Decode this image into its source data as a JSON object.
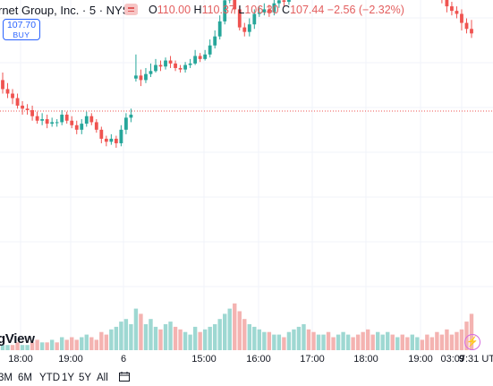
{
  "header": {
    "symbol": "rnet Group, Inc. · 5 · NYSE",
    "o_label": "O",
    "o": "110.00",
    "h_label": "H",
    "h": "110.37",
    "l_label": "L",
    "l": "106.30",
    "c_label": "C",
    "c": "107.44",
    "change": "−2.56 (−2.32%)"
  },
  "trade": {
    "price": "107.70",
    "action": "BUY"
  },
  "logo": {
    "text": "gView"
  },
  "time_axis": {
    "labels": [
      "18:00",
      "19:00",
      "6",
      "15:00",
      "16:00",
      "17:00",
      "18:00",
      "19:00",
      "9"
    ],
    "clock": "03:07:31 UT"
  },
  "ranges": [
    "3M",
    "6M",
    "YTD",
    "1Y",
    "5Y",
    "All"
  ],
  "colors": {
    "up": "#26a69a",
    "down": "#ef5350",
    "vol_up": "#9ed8d2",
    "vol_down": "#f4b3b1",
    "price_line": "#ef5350",
    "accent": "#2962ff"
  },
  "chart_data": {
    "type": "candlestick",
    "current_price": 107.44,
    "candles": [
      [
        109.5,
        108.9,
        110.0,
        108.6
      ],
      [
        108.9,
        108.6,
        109.3,
        108.3
      ],
      [
        108.6,
        108.3,
        108.9,
        107.9
      ],
      [
        108.3,
        107.8,
        108.6,
        107.6
      ],
      [
        107.8,
        107.6,
        108.1,
        107.2
      ],
      [
        107.6,
        107.5,
        107.9,
        107.2
      ],
      [
        107.5,
        107.1,
        107.8,
        106.8
      ],
      [
        107.1,
        106.8,
        107.4,
        106.6
      ],
      [
        106.8,
        106.9,
        107.3,
        106.5
      ],
      [
        106.9,
        106.6,
        107.2,
        106.3
      ],
      [
        106.6,
        106.7,
        107.0,
        106.4
      ],
      [
        106.7,
        106.7,
        106.9,
        106.4
      ],
      [
        106.7,
        107.2,
        107.5,
        106.5
      ],
      [
        107.2,
        106.8,
        107.4,
        106.6
      ],
      [
        106.8,
        106.5,
        107.1,
        106.3
      ],
      [
        106.5,
        106.2,
        106.8,
        105.9
      ],
      [
        106.2,
        106.6,
        106.9,
        105.9
      ],
      [
        106.6,
        107.1,
        107.4,
        106.4
      ],
      [
        107.1,
        106.7,
        107.3,
        106.5
      ],
      [
        106.7,
        106.2,
        106.9,
        106.0
      ],
      [
        106.2,
        105.6,
        106.4,
        105.3
      ],
      [
        105.6,
        105.4,
        105.8,
        105.1
      ],
      [
        105.4,
        105.6,
        105.9,
        105.2
      ],
      [
        105.6,
        105.3,
        105.8,
        105.0
      ],
      [
        105.3,
        106.2,
        106.5,
        105.1
      ],
      [
        106.2,
        107.0,
        107.3,
        105.9
      ],
      [
        107.0,
        107.2,
        107.6,
        106.7
      ],
      [
        109.6,
        109.8,
        111.2,
        109.4
      ],
      [
        109.8,
        109.5,
        110.2,
        109.1
      ],
      [
        109.5,
        109.9,
        110.3,
        109.3
      ],
      [
        109.9,
        110.1,
        110.6,
        109.7
      ],
      [
        110.1,
        110.5,
        110.9,
        110.0
      ],
      [
        110.5,
        110.4,
        110.8,
        110.1
      ],
      [
        110.4,
        110.8,
        111.0,
        110.2
      ],
      [
        110.8,
        110.6,
        111.1,
        110.3
      ],
      [
        110.6,
        110.3,
        110.8,
        110.1
      ],
      [
        110.3,
        110.2,
        110.5,
        110.0
      ],
      [
        110.2,
        110.5,
        110.7,
        110.0
      ],
      [
        110.5,
        110.6,
        110.9,
        110.3
      ],
      [
        110.6,
        111.1,
        111.5,
        110.5
      ],
      [
        111.1,
        110.9,
        111.3,
        110.7
      ],
      [
        110.9,
        111.2,
        111.5,
        110.8
      ],
      [
        111.2,
        111.8,
        112.2,
        111.0
      ],
      [
        111.8,
        112.4,
        112.8,
        111.6
      ],
      [
        112.4,
        113.4,
        113.8,
        112.2
      ],
      [
        113.4,
        114.8,
        115.4,
        113.2
      ],
      [
        114.8,
        115.3,
        116.4,
        114.6
      ],
      [
        115.3,
        114.2,
        115.6,
        113.9
      ],
      [
        114.2,
        113.0,
        114.4,
        112.8
      ],
      [
        113.0,
        112.7,
        113.3,
        112.4
      ],
      [
        112.7,
        113.2,
        113.6,
        112.4
      ],
      [
        113.2,
        113.9,
        114.2,
        112.9
      ],
      [
        113.9,
        114.0,
        114.4,
        113.7
      ],
      [
        114.0,
        114.2,
        114.6,
        113.8
      ],
      [
        114.2,
        114.0,
        114.5,
        113.7
      ],
      [
        114.0,
        114.6,
        114.9,
        113.8
      ],
      [
        114.6,
        114.8,
        115.0,
        114.3
      ],
      [
        114.8,
        114.7,
        115.2,
        114.4
      ],
      [
        114.7,
        115.3,
        115.6,
        114.5
      ],
      [
        115.3,
        116.1,
        116.5,
        115.1
      ],
      [
        116.1,
        116.8,
        117.1,
        115.9
      ],
      [
        116.8,
        117.8,
        118.2,
        116.5
      ],
      [
        117.8,
        117.1,
        118.1,
        116.7
      ],
      [
        117.1,
        116.9,
        117.4,
        116.6
      ],
      [
        116.9,
        117.3,
        117.6,
        116.7
      ],
      [
        117.3,
        117.6,
        117.9,
        117.1
      ],
      [
        117.6,
        117.2,
        117.8,
        116.9
      ],
      [
        117.2,
        117.1,
        117.5,
        116.8
      ],
      [
        117.1,
        117.3,
        117.6,
        116.9
      ],
      [
        117.3,
        117.6,
        117.8,
        117.0
      ],
      [
        117.6,
        117.8,
        118.0,
        117.4
      ],
      [
        117.8,
        117.5,
        118.0,
        117.2
      ],
      [
        117.5,
        117.1,
        117.7,
        116.7
      ],
      [
        117.1,
        116.6,
        117.3,
        116.2
      ],
      [
        116.6,
        115.7,
        116.8,
        115.4
      ],
      [
        115.7,
        115.4,
        116.1,
        115.1
      ],
      [
        115.4,
        115.9,
        116.2,
        115.2
      ],
      [
        115.9,
        116.7,
        117.1,
        115.8
      ],
      [
        116.7,
        117.3,
        117.7,
        116.5
      ],
      [
        117.3,
        116.8,
        117.5,
        116.6
      ],
      [
        116.8,
        116.9,
        117.2,
        116.5
      ],
      [
        116.9,
        116.6,
        117.1,
        116.3
      ],
      [
        116.6,
        116.5,
        116.9,
        116.2
      ],
      [
        116.5,
        116.8,
        117.1,
        116.3
      ],
      [
        116.8,
        117.1,
        117.5,
        116.6
      ],
      [
        117.1,
        116.9,
        117.3,
        116.7
      ],
      [
        116.9,
        116.0,
        117.1,
        115.8
      ],
      [
        116.0,
        115.8,
        116.2,
        115.5
      ],
      [
        115.8,
        115.2,
        116.0,
        114.9
      ],
      [
        115.2,
        114.9,
        115.5,
        114.6
      ],
      [
        114.9,
        114.4,
        115.2,
        114.0
      ],
      [
        114.4,
        114.1,
        114.7,
        113.8
      ],
      [
        114.1,
        113.9,
        114.4,
        113.6
      ],
      [
        113.9,
        113.3,
        114.2,
        112.8
      ],
      [
        113.3,
        112.9,
        113.6,
        112.6
      ],
      [
        112.9,
        112.6,
        113.5,
        112.3
      ]
    ],
    "volume": [
      [
        2,
        1
      ],
      [
        2,
        1
      ],
      [
        2,
        0
      ],
      [
        3,
        0
      ],
      [
        2,
        1
      ],
      [
        2,
        1
      ],
      [
        3,
        0
      ],
      [
        4,
        0
      ],
      [
        3,
        1
      ],
      [
        3,
        0
      ],
      [
        4,
        1
      ],
      [
        3,
        0
      ],
      [
        5,
        1
      ],
      [
        4,
        0
      ],
      [
        5,
        0
      ],
      [
        4,
        0
      ],
      [
        5,
        1
      ],
      [
        6,
        1
      ],
      [
        5,
        0
      ],
      [
        4,
        0
      ],
      [
        7,
        0
      ],
      [
        6,
        0
      ],
      [
        8,
        1
      ],
      [
        9,
        1
      ],
      [
        11,
        1
      ],
      [
        12,
        1
      ],
      [
        10,
        1
      ],
      [
        16,
        1
      ],
      [
        14,
        0
      ],
      [
        10,
        1
      ],
      [
        12,
        1
      ],
      [
        9,
        1
      ],
      [
        8,
        0
      ],
      [
        10,
        1
      ],
      [
        11,
        1
      ],
      [
        9,
        0
      ],
      [
        8,
        0
      ],
      [
        7,
        1
      ],
      [
        6,
        1
      ],
      [
        9,
        1
      ],
      [
        7,
        0
      ],
      [
        8,
        1
      ],
      [
        9,
        1
      ],
      [
        10,
        1
      ],
      [
        12,
        1
      ],
      [
        14,
        1
      ],
      [
        16,
        1
      ],
      [
        18,
        0
      ],
      [
        15,
        0
      ],
      [
        12,
        0
      ],
      [
        10,
        1
      ],
      [
        9,
        1
      ],
      [
        8,
        1
      ],
      [
        7,
        1
      ],
      [
        7,
        0
      ],
      [
        6,
        1
      ],
      [
        6,
        1
      ],
      [
        5,
        0
      ],
      [
        7,
        1
      ],
      [
        8,
        1
      ],
      [
        9,
        1
      ],
      [
        10,
        1
      ],
      [
        8,
        0
      ],
      [
        7,
        0
      ],
      [
        6,
        1
      ],
      [
        6,
        1
      ],
      [
        7,
        0
      ],
      [
        5,
        0
      ],
      [
        6,
        1
      ],
      [
        7,
        1
      ],
      [
        6,
        1
      ],
      [
        5,
        0
      ],
      [
        6,
        0
      ],
      [
        7,
        0
      ],
      [
        8,
        0
      ],
      [
        6,
        0
      ],
      [
        7,
        1
      ],
      [
        6,
        1
      ],
      [
        7,
        1
      ],
      [
        6,
        0
      ],
      [
        5,
        1
      ],
      [
        6,
        0
      ],
      [
        5,
        0
      ],
      [
        6,
        1
      ],
      [
        5,
        1
      ],
      [
        4,
        0
      ],
      [
        6,
        0
      ],
      [
        5,
        0
      ],
      [
        7,
        0
      ],
      [
        6,
        0
      ],
      [
        8,
        0
      ],
      [
        6,
        0
      ],
      [
        7,
        0
      ],
      [
        8,
        0
      ],
      [
        11,
        0
      ],
      [
        14,
        0
      ]
    ]
  }
}
